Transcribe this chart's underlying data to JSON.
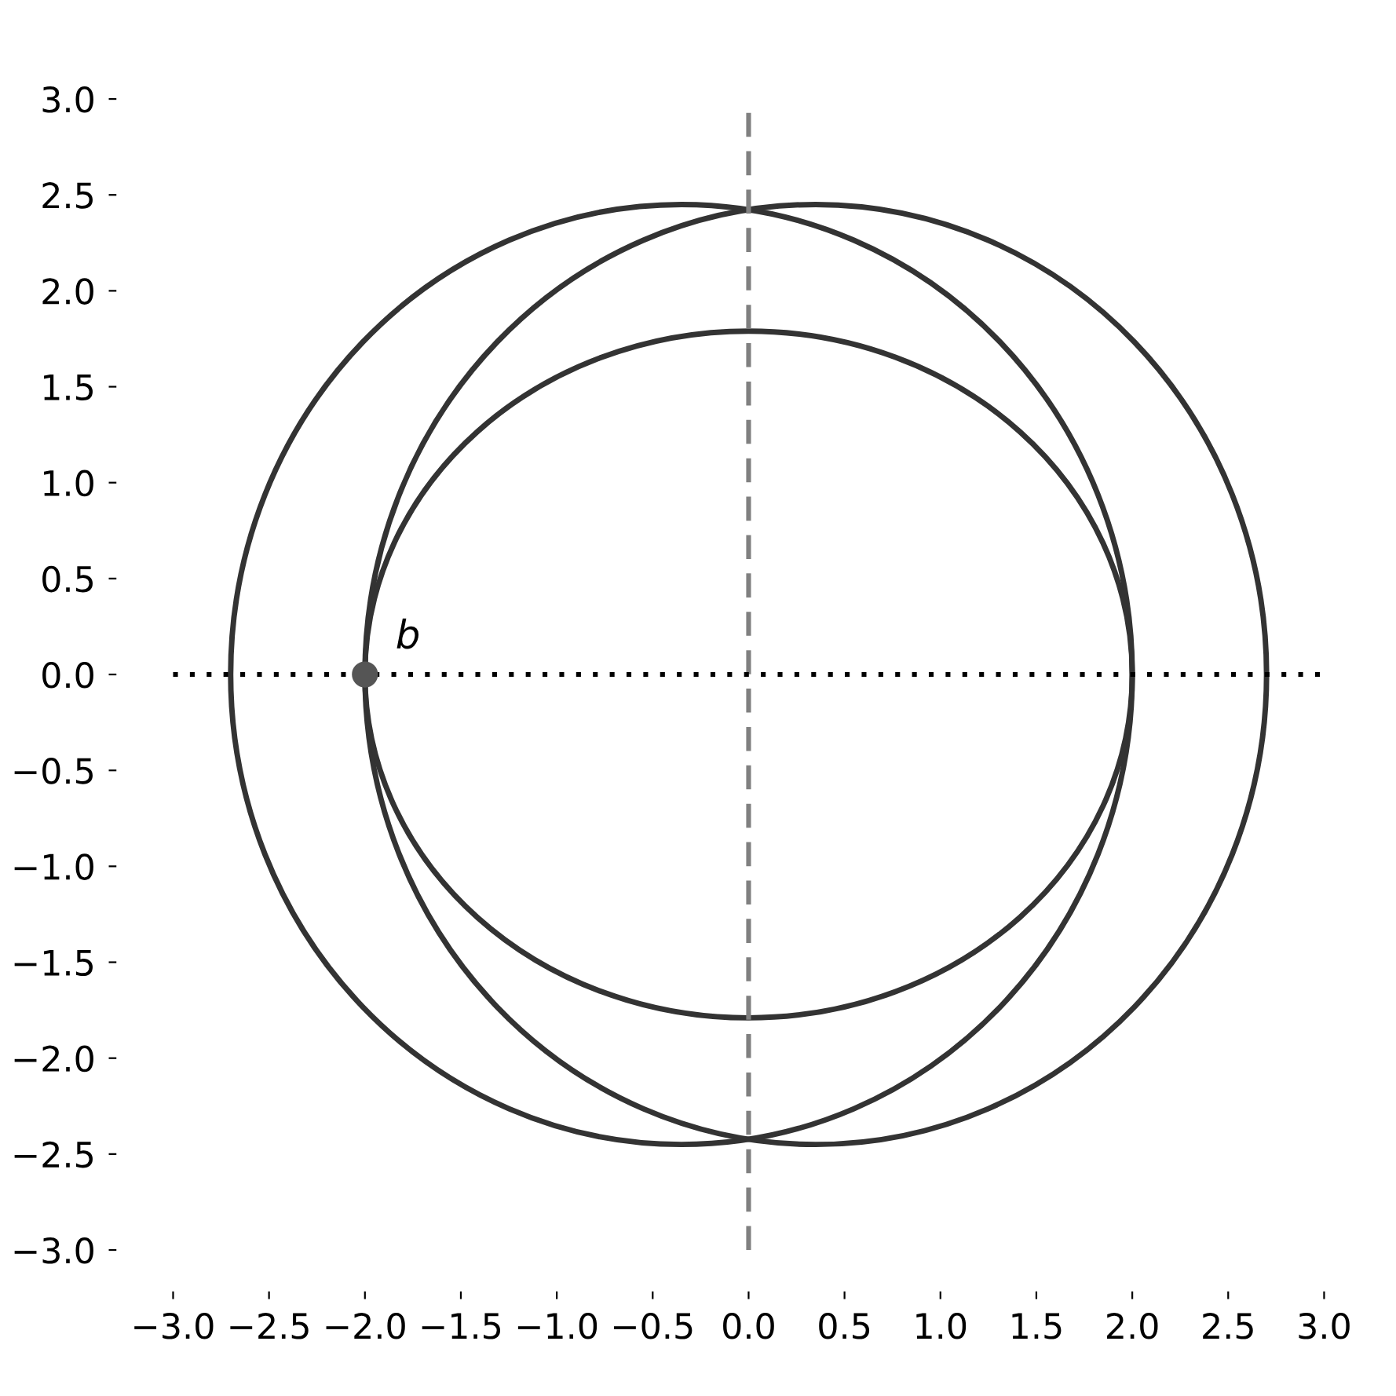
{
  "chart_data": {
    "type": "line",
    "xlim": [
      -3.0,
      3.0
    ],
    "ylim": [
      -3.0,
      3.0
    ],
    "xticks": [
      {
        "value": -3.0,
        "label": "−3.0"
      },
      {
        "value": -2.5,
        "label": "−2.5"
      },
      {
        "value": -2.0,
        "label": "−2.0"
      },
      {
        "value": -1.5,
        "label": "−1.5"
      },
      {
        "value": -1.0,
        "label": "−1.0"
      },
      {
        "value": -0.5,
        "label": "−0.5"
      },
      {
        "value": 0,
        "label": "0.0"
      },
      {
        "value": 0.5,
        "label": "0.5"
      },
      {
        "value": 1.0,
        "label": "1.0"
      },
      {
        "value": 1.5,
        "label": "1.5"
      },
      {
        "value": 2.0,
        "label": "2.0"
      },
      {
        "value": 2.5,
        "label": "2.5"
      },
      {
        "value": 3.0,
        "label": "3.0"
      }
    ],
    "yticks": [
      {
        "value": -3.0,
        "label": "−3.0"
      },
      {
        "value": -2.5,
        "label": "−2.5"
      },
      {
        "value": -2.0,
        "label": "−2.0"
      },
      {
        "value": -1.5,
        "label": "−1.5"
      },
      {
        "value": -1.0,
        "label": "−1.0"
      },
      {
        "value": -0.5,
        "label": "−0.5"
      },
      {
        "value": 0,
        "label": "0.0"
      },
      {
        "value": 0.5,
        "label": "0.5"
      },
      {
        "value": 1.0,
        "label": "1.0"
      },
      {
        "value": 1.5,
        "label": "1.5"
      },
      {
        "value": 2.0,
        "label": "2.0"
      },
      {
        "value": 2.5,
        "label": "2.5"
      },
      {
        "value": 3.0,
        "label": "3.0"
      }
    ],
    "grid": false,
    "legend": false,
    "series": [
      {
        "color": "#808080",
        "line_style": "dashed",
        "x": [
          0,
          0
        ],
        "values": [
          -3.0,
          3.0
        ]
      },
      {
        "color": "#000000",
        "line_style": "dotted",
        "x": [
          -3.0,
          3.0
        ],
        "values": [
          0,
          0
        ]
      },
      {
        "type": "scatter",
        "color": "#555555",
        "marker": "circle",
        "x": [
          -2.0
        ],
        "values": [
          0
        ]
      }
    ],
    "annotations": [
      {
        "text": "b",
        "x": -2.0,
        "y": 0
      }
    ]
  }
}
